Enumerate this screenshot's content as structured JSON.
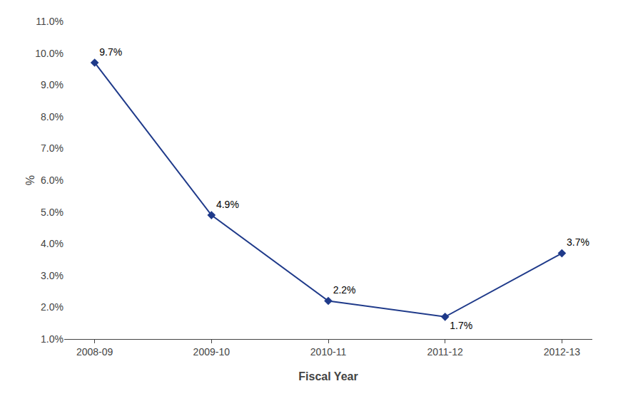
{
  "chart_data": {
    "type": "line",
    "xlabel": "Fiscal Year",
    "ylabel": "%",
    "categories": [
      "2008-09",
      "2009-10",
      "2010-11",
      "2011-12",
      "2012-13"
    ],
    "values": [
      9.7,
      4.9,
      2.2,
      1.7,
      3.7
    ],
    "value_labels": [
      "9.7%",
      "4.9%",
      "2.2%",
      "1.7%",
      "3.7%"
    ],
    "data_labels": true,
    "color": "#1F3A8A",
    "marker": "diamond",
    "ylim": [
      1.0,
      11.0
    ],
    "yticks": [
      {
        "value": 1.0,
        "label": "1.0%"
      },
      {
        "value": 2.0,
        "label": "2.0%"
      },
      {
        "value": 3.0,
        "label": "3.0%"
      },
      {
        "value": 4.0,
        "label": "4.0%"
      },
      {
        "value": 5.0,
        "label": "5.0%"
      },
      {
        "value": 6.0,
        "label": "6.0%"
      },
      {
        "value": 7.0,
        "label": "7.0%"
      },
      {
        "value": 8.0,
        "label": "8.0%"
      },
      {
        "value": 9.0,
        "label": "9.0%"
      },
      {
        "value": 10.0,
        "label": "10.0%"
      },
      {
        "value": 11.0,
        "label": "11.0%"
      }
    ],
    "grid": false
  }
}
